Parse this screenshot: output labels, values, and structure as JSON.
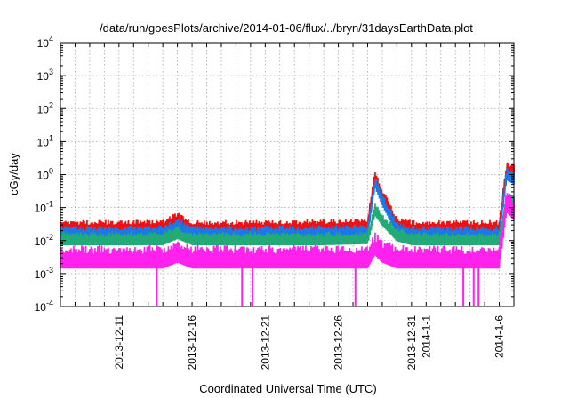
{
  "chart_data": {
    "type": "line",
    "title": "/data/run/goesPlots/archive/2014-01-06/flux/../bryn/31daysEarthData.plot",
    "xlabel": "Coordinated Universal Time (UTC)",
    "ylabel": "cGy/day",
    "y_scale": "log",
    "ylim": [
      0.0001,
      10000
    ],
    "xlim": [
      "2013-12-07",
      "2014-01-07"
    ],
    "grid": true,
    "legend": "none",
    "y_ticks": [
      {
        "mantissa": "10",
        "exp": "-4",
        "value": 0.0001
      },
      {
        "mantissa": "10",
        "exp": "-3",
        "value": 0.001
      },
      {
        "mantissa": "10",
        "exp": "-2",
        "value": 0.01
      },
      {
        "mantissa": "10",
        "exp": "-1",
        "value": 0.1
      },
      {
        "mantissa": "10",
        "exp": "0",
        "value": 1
      },
      {
        "mantissa": "10",
        "exp": "1",
        "value": 10
      },
      {
        "mantissa": "10",
        "exp": "2",
        "value": 100
      },
      {
        "mantissa": "10",
        "exp": "3",
        "value": 1000
      },
      {
        "mantissa": "10",
        "exp": "4",
        "value": 10000
      }
    ],
    "x_ticks": [
      {
        "label": "2013-12-11",
        "x": "2013-12-11"
      },
      {
        "label": "2013-12-16",
        "x": "2013-12-16"
      },
      {
        "label": "2013-12-21",
        "x": "2013-12-21"
      },
      {
        "label": "2013-12-26",
        "x": "2013-12-26"
      },
      {
        "label": "2013-12-31",
        "x": "2013-12-31"
      },
      {
        "label": "2014-1-1",
        "x": "2014-01-01"
      },
      {
        "label": "2014-1-6",
        "x": "2014-01-06"
      }
    ],
    "series": [
      {
        "color": "#ee1111",
        "x": [
          "2013-12-07",
          "2013-12-10",
          "2013-12-14",
          "2013-12-15",
          "2013-12-16",
          "2013-12-20",
          "2013-12-25",
          "2013-12-28",
          "2013-12-28T12:00",
          "2013-12-29",
          "2013-12-30",
          "2013-12-31",
          "2014-01-03",
          "2014-01-06",
          "2014-01-06T12:00",
          "2014-01-07"
        ],
        "values": [
          0.03,
          0.03,
          0.032,
          0.055,
          0.03,
          0.03,
          0.032,
          0.035,
          1.1,
          0.3,
          0.04,
          0.03,
          0.03,
          0.03,
          1.8,
          1.5
        ]
      },
      {
        "color": "#1a78e8",
        "x": [
          "2013-12-07",
          "2013-12-10",
          "2013-12-14",
          "2013-12-15",
          "2013-12-16",
          "2013-12-20",
          "2013-12-25",
          "2013-12-28",
          "2013-12-28T12:00",
          "2013-12-29",
          "2013-12-30",
          "2013-12-31",
          "2014-01-03",
          "2014-01-06",
          "2014-01-06T12:00",
          "2014-01-07"
        ],
        "values": [
          0.02,
          0.02,
          0.021,
          0.035,
          0.02,
          0.02,
          0.021,
          0.023,
          0.7,
          0.2,
          0.028,
          0.02,
          0.02,
          0.02,
          1.2,
          0.9
        ]
      },
      {
        "color": "#22aa77",
        "x": [
          "2013-12-07",
          "2013-12-10",
          "2013-12-14",
          "2013-12-15",
          "2013-12-16",
          "2013-12-20",
          "2013-12-25",
          "2013-12-28",
          "2013-12-28T12:00",
          "2013-12-29",
          "2013-12-30",
          "2013-12-31",
          "2014-01-03",
          "2014-01-06",
          "2014-01-06T12:00",
          "2014-01-07"
        ],
        "values": [
          0.013,
          0.013,
          0.013,
          0.02,
          0.013,
          0.013,
          0.013,
          0.014,
          0.1,
          0.05,
          0.017,
          0.013,
          0.013,
          0.013,
          0.2,
          0.18
        ]
      },
      {
        "color": "#ff22ee",
        "x": [
          "2013-12-07",
          "2013-12-10",
          "2013-12-14",
          "2013-12-15",
          "2013-12-16",
          "2013-12-20",
          "2013-12-25",
          "2013-12-28",
          "2013-12-28T12:00",
          "2013-12-29",
          "2013-12-30",
          "2013-12-31",
          "2014-01-03",
          "2014-01-06",
          "2014-01-06T12:00",
          "2014-01-07"
        ],
        "values": [
          0.004,
          0.004,
          0.004,
          0.006,
          0.004,
          0.004,
          0.004,
          0.004,
          0.01,
          0.006,
          0.004,
          0.004,
          0.004,
          0.004,
          0.2,
          0.12
        ]
      }
    ],
    "dropouts": [
      {
        "series": 3,
        "x": "2013-12-13T14:00",
        "value": 0.0001
      },
      {
        "series": 3,
        "x": "2013-12-19T10:00",
        "value": 0.0001
      },
      {
        "series": 3,
        "x": "2013-12-20T03:00",
        "value": 0.0001
      },
      {
        "series": 3,
        "x": "2013-12-27T04:00",
        "value": 0.0001
      },
      {
        "series": 3,
        "x": "2014-01-03T13:00",
        "value": 0.0001
      },
      {
        "series": 3,
        "x": "2014-01-04T06:00",
        "value": 0.0001
      },
      {
        "series": 3,
        "x": "2014-01-04T14:00",
        "value": 0.0001
      }
    ]
  }
}
